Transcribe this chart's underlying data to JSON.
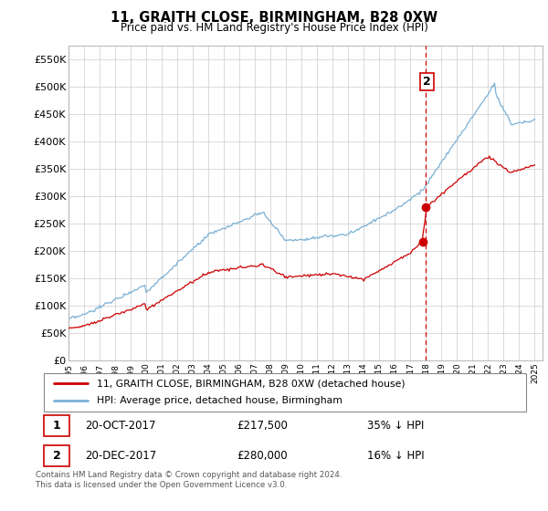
{
  "title": "11, GRAITH CLOSE, BIRMINGHAM, B28 0XW",
  "subtitle": "Price paid vs. HM Land Registry's House Price Index (HPI)",
  "ylim": [
    0,
    575000
  ],
  "yticks": [
    0,
    50000,
    100000,
    150000,
    200000,
    250000,
    300000,
    350000,
    400000,
    450000,
    500000,
    550000
  ],
  "ytick_labels": [
    "£0",
    "£50K",
    "£100K",
    "£150K",
    "£200K",
    "£250K",
    "£300K",
    "£350K",
    "£400K",
    "£450K",
    "£500K",
    "£550K"
  ],
  "x_start_year": 1995,
  "x_end_year": 2025,
  "line_color_property": "#cc0000",
  "line_color_hpi": "#7ab0d4",
  "vline_color": "#cc0000",
  "transaction_1": {
    "date": "20-OCT-2017",
    "price": 217500,
    "pct": "35%",
    "dir": "↓",
    "label": "1"
  },
  "transaction_2": {
    "date": "20-DEC-2017",
    "price": 280000,
    "pct": "16%",
    "dir": "↓",
    "label": "2"
  },
  "legend_property": "11, GRAITH CLOSE, BIRMINGHAM, B28 0XW (detached house)",
  "legend_hpi": "HPI: Average price, detached house, Birmingham",
  "footnote": "Contains HM Land Registry data © Crown copyright and database right 2024.\nThis data is licensed under the Open Government Licence v3.0.",
  "background_color": "#ffffff",
  "grid_color": "#cccccc"
}
